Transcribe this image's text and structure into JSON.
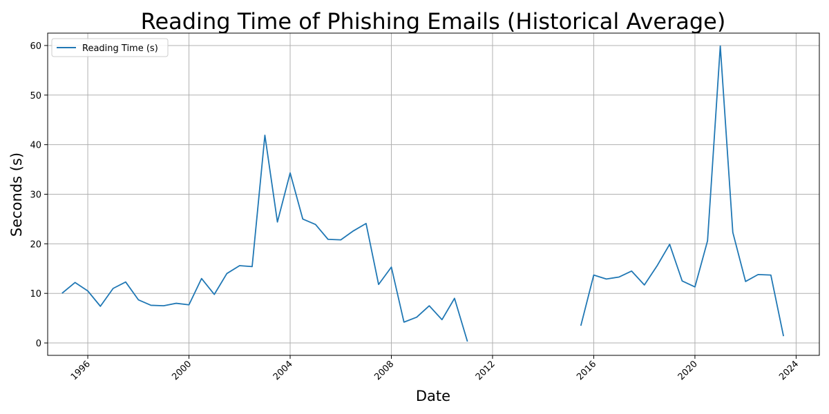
{
  "chart_data": {
    "type": "line",
    "title": "Reading Time of Phishing Emails (Historical Average)",
    "xlabel": "Date",
    "ylabel": "Seconds (s)",
    "x_axis_type": "date",
    "xlim": [
      "1994-06-01",
      "2024-12-01"
    ],
    "ylim": [
      -2.5,
      62.5
    ],
    "xticks": [
      "1996",
      "2000",
      "2004",
      "2008",
      "2012",
      "2016",
      "2020",
      "2024"
    ],
    "yticks": [
      0,
      10,
      20,
      30,
      40,
      50,
      60
    ],
    "grid": true,
    "legend_position": "upper-left",
    "colors": {
      "series": "#1f77b4",
      "grid": "#b0b0b0"
    },
    "series": [
      {
        "name": "Reading Time (s)",
        "segments": [
          {
            "x": [
              "1995-01-01",
              "1995-07-01",
              "1996-01-01",
              "1996-07-01",
              "1997-01-01",
              "1997-07-01",
              "1998-01-01",
              "1998-07-01",
              "1999-01-01",
              "1999-07-01",
              "2000-01-01",
              "2000-07-01",
              "2001-01-01",
              "2001-07-01",
              "2002-01-01",
              "2002-07-01",
              "2003-01-01",
              "2003-07-01",
              "2004-01-01",
              "2004-07-01",
              "2005-01-01",
              "2005-07-01",
              "2006-01-01",
              "2006-07-01",
              "2007-01-01",
              "2007-07-01",
              "2008-01-01",
              "2008-07-01",
              "2009-01-01",
              "2009-07-01",
              "2010-01-01",
              "2010-07-01",
              "2011-01-01"
            ],
            "y": [
              10.1,
              12.2,
              10.5,
              7.4,
              11.0,
              12.3,
              8.7,
              7.6,
              7.5,
              8.0,
              7.7,
              13.0,
              9.8,
              14.0,
              15.6,
              15.4,
              41.9,
              24.4,
              34.3,
              25.0,
              23.9,
              20.9,
              20.8,
              22.6,
              24.1,
              11.8,
              15.3,
              4.2,
              5.2,
              7.5,
              4.7,
              9.0,
              0.4
            ]
          },
          {
            "x": [
              "2015-07-01",
              "2016-01-01",
              "2016-07-01",
              "2017-01-01",
              "2017-07-01",
              "2018-01-01",
              "2018-07-01",
              "2019-01-01",
              "2019-07-01",
              "2020-01-01",
              "2020-07-01",
              "2021-01-01",
              "2021-07-01",
              "2022-01-01",
              "2022-07-01",
              "2023-01-01",
              "2023-07-01"
            ],
            "y": [
              3.6,
              13.7,
              12.9,
              13.3,
              14.5,
              11.7,
              15.5,
              19.9,
              12.5,
              11.3,
              20.6,
              59.9,
              22.3,
              12.4,
              13.8,
              13.7,
              1.5
            ]
          }
        ]
      }
    ]
  }
}
